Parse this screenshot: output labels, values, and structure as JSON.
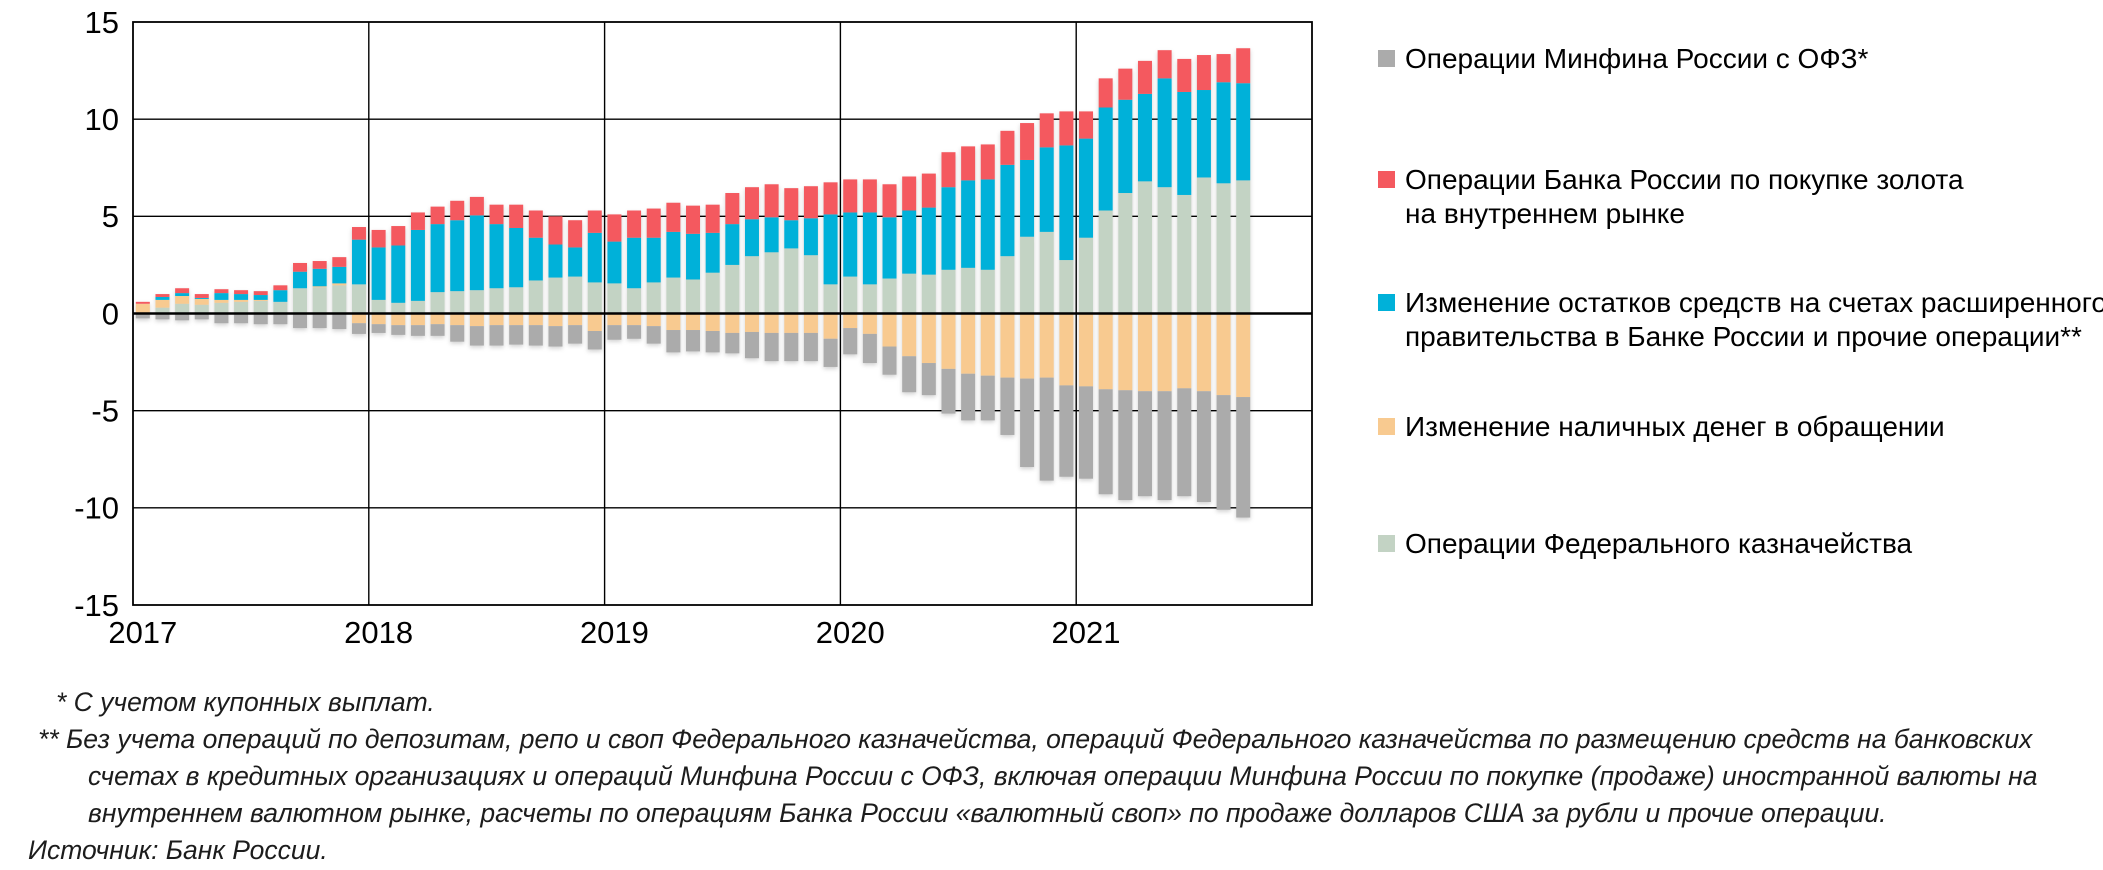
{
  "chart_data": {
    "type": "bar",
    "stacked": true,
    "grid": true,
    "legend_position": "right",
    "ylim": [
      -15,
      15
    ],
    "yticks": [
      15,
      10,
      5,
      0,
      -5,
      -10,
      -15
    ],
    "xticks": [
      "2017",
      "2018",
      "2019",
      "2020",
      "2021"
    ],
    "x_monthly_range": [
      "2017-01",
      "2021-09"
    ],
    "series": [
      {
        "name": "Операции Федерального казначейства",
        "color": "#c3d3c4",
        "values": [
          0.05,
          0.3,
          0.5,
          0.45,
          0.55,
          0.6,
          0.65,
          0.6,
          1.3,
          1.35,
          1.45,
          1.5,
          0.7,
          0.55,
          0.65,
          1.1,
          1.15,
          1.2,
          1.3,
          1.35,
          1.7,
          1.85,
          1.9,
          1.6,
          1.55,
          1.3,
          1.6,
          1.85,
          1.75,
          2.1,
          2.5,
          2.95,
          3.15,
          3.35,
          3.0,
          1.5,
          1.9,
          1.5,
          1.8,
          2.05,
          2.0,
          2.25,
          2.35,
          2.25,
          2.95,
          3.95,
          4.2,
          2.75,
          3.9,
          5.3,
          6.2,
          6.8,
          6.5,
          6.1,
          7.0,
          6.7,
          6.85
        ]
      },
      {
        "name": "Изменение наличных денег в обращении",
        "color": "#f8ca90",
        "values": [
          0.45,
          0.4,
          0.4,
          0.3,
          0.15,
          0.1,
          0.05,
          0.0,
          0.0,
          0.05,
          0.1,
          -0.5,
          -0.55,
          -0.6,
          -0.6,
          -0.55,
          -0.6,
          -0.65,
          -0.6,
          -0.6,
          -0.6,
          -0.65,
          -0.6,
          -0.9,
          -0.6,
          -0.6,
          -0.65,
          -0.85,
          -0.85,
          -0.9,
          -1.0,
          -0.95,
          -1.0,
          -1.0,
          -1.0,
          -1.3,
          -0.75,
          -1.05,
          -1.7,
          -2.2,
          -2.55,
          -2.85,
          -3.1,
          -3.2,
          -3.3,
          -3.35,
          -3.3,
          -3.7,
          -3.75,
          -3.9,
          -3.95,
          -4.0,
          -4.0,
          -3.85,
          -4.0,
          -4.2,
          -4.3
        ]
      },
      {
        "name": "Изменение остатков средств на счетах расширенного правительства в Банке России и прочие операции**",
        "color": "#00b1d9",
        "values": [
          0.0,
          0.15,
          0.15,
          0.05,
          0.35,
          0.3,
          0.25,
          0.6,
          0.85,
          0.9,
          0.85,
          2.3,
          2.7,
          2.95,
          3.65,
          3.5,
          3.65,
          3.85,
          3.3,
          3.05,
          2.2,
          1.7,
          1.5,
          2.55,
          2.15,
          2.6,
          2.3,
          2.35,
          2.35,
          2.05,
          2.1,
          1.9,
          1.8,
          1.45,
          1.9,
          3.6,
          3.3,
          3.7,
          3.15,
          3.25,
          3.45,
          4.25,
          4.5,
          4.65,
          4.7,
          3.95,
          4.35,
          5.9,
          5.1,
          5.3,
          4.8,
          4.5,
          5.6,
          5.3,
          4.5,
          5.2,
          5.0
        ]
      },
      {
        "name": "Операции Банка России по покупке золота на внутреннем рынке",
        "color": "#f4595f",
        "values": [
          0.1,
          0.15,
          0.25,
          0.2,
          0.2,
          0.2,
          0.2,
          0.25,
          0.45,
          0.4,
          0.5,
          0.65,
          0.9,
          1.0,
          0.9,
          0.9,
          1.0,
          0.95,
          1.0,
          1.2,
          1.4,
          1.45,
          1.4,
          1.15,
          1.4,
          1.4,
          1.5,
          1.5,
          1.45,
          1.45,
          1.6,
          1.65,
          1.7,
          1.65,
          1.65,
          1.65,
          1.7,
          1.7,
          1.7,
          1.75,
          1.75,
          1.8,
          1.75,
          1.8,
          1.75,
          1.9,
          1.75,
          1.75,
          1.4,
          1.5,
          1.6,
          1.7,
          1.45,
          1.7,
          1.8,
          1.45,
          1.8
        ]
      },
      {
        "name": "Операции Минфина России с ОФЗ*",
        "color": "#ababab",
        "values": [
          -0.25,
          -0.3,
          -0.35,
          -0.3,
          -0.5,
          -0.5,
          -0.55,
          -0.55,
          -0.75,
          -0.75,
          -0.8,
          -0.55,
          -0.45,
          -0.5,
          -0.55,
          -0.6,
          -0.85,
          -1.0,
          -1.05,
          -1.0,
          -1.05,
          -1.05,
          -0.95,
          -0.95,
          -0.75,
          -0.7,
          -0.9,
          -1.15,
          -1.1,
          -1.1,
          -1.05,
          -1.35,
          -1.45,
          -1.45,
          -1.45,
          -1.45,
          -1.35,
          -1.5,
          -1.45,
          -1.85,
          -1.65,
          -2.3,
          -2.4,
          -2.3,
          -2.95,
          -4.55,
          -5.3,
          -4.7,
          -4.75,
          -5.4,
          -5.65,
          -5.4,
          -5.6,
          -5.55,
          -5.7,
          -5.9,
          -6.2
        ]
      }
    ]
  },
  "legend": {
    "items": [
      {
        "color": "#ababab",
        "lines": [
          "Операции Минфина России с ОФЗ*"
        ]
      },
      {
        "color": "#f4595f",
        "lines": [
          "Операции Банка России по покупке золота",
          "на внутреннем рынке"
        ]
      },
      {
        "color": "#00b1d9",
        "lines": [
          "Изменение остатков средств на счетах расширенного",
          "правительства в Банке России и прочие операции**"
        ]
      },
      {
        "color": "#f8ca90",
        "lines": [
          "Изменение наличных денег в обращении"
        ]
      },
      {
        "color": "#c3d3c4",
        "lines": [
          "Операции Федерального казначейства"
        ]
      }
    ]
  },
  "footnotes": {
    "note1": "* С учетом купонных выплат.",
    "note2": "** Без учета операций по депозитам, репо и своп Федерального казначейства, операций Федерального казначейства по размещению средств на банковских счетах в кредитных организациях и операций Минфина России с ОФЗ, включая операции Минфина России по покупке (продаже) иностранной валюты на внутреннем валютном рынке, расчеты по операциям Банка России «валютный своп» по продаже долларов США за рубли и прочие операции.",
    "source": "Источник: Банк России."
  }
}
